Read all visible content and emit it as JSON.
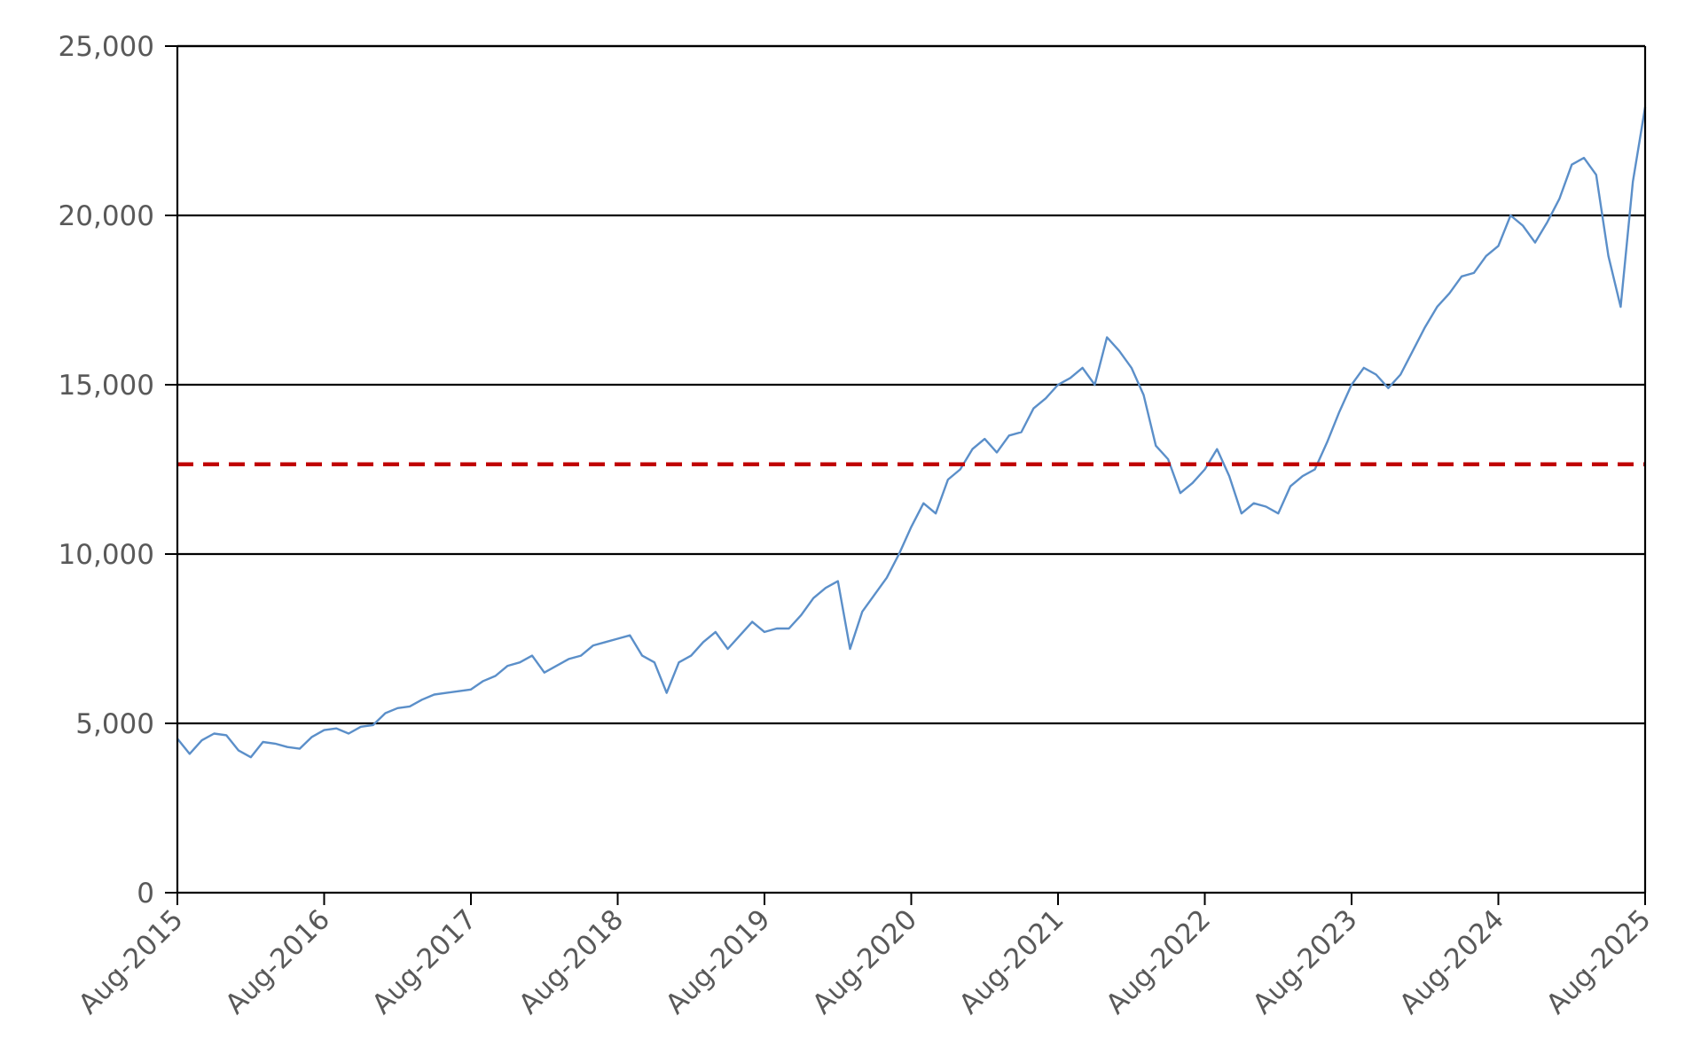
{
  "chart_data": {
    "type": "line",
    "title": "",
    "xlabel": "",
    "ylabel": "",
    "x_tick_labels": [
      "Aug-2015",
      "Aug-2016",
      "Aug-2017",
      "Aug-2018",
      "Aug-2019",
      "Aug-2020",
      "Aug-2021",
      "Aug-2022",
      "Aug-2023",
      "Aug-2024",
      "Aug-2025"
    ],
    "y_tick_labels": [
      "0",
      "5,000",
      "10,000",
      "15,000",
      "20,000",
      "25,000"
    ],
    "y_ticks": [
      0,
      5000,
      10000,
      15000,
      20000,
      25000
    ],
    "xlim": [
      "2015-08",
      "2025-08"
    ],
    "ylim": [
      0,
      25000
    ],
    "grid": "horizontal",
    "legend": "none",
    "series": [
      {
        "color": "#5b8fc9",
        "x": [
          "2015-08",
          "2015-09",
          "2015-10",
          "2015-11",
          "2015-12",
          "2016-01",
          "2016-02",
          "2016-03",
          "2016-04",
          "2016-05",
          "2016-06",
          "2016-07",
          "2016-08",
          "2016-09",
          "2016-10",
          "2016-11",
          "2016-12",
          "2017-01",
          "2017-02",
          "2017-03",
          "2017-04",
          "2017-05",
          "2017-06",
          "2017-07",
          "2017-08",
          "2017-09",
          "2017-10",
          "2017-11",
          "2017-12",
          "2018-01",
          "2018-02",
          "2018-03",
          "2018-04",
          "2018-05",
          "2018-06",
          "2018-07",
          "2018-08",
          "2018-09",
          "2018-10",
          "2018-11",
          "2018-12",
          "2019-01",
          "2019-02",
          "2019-03",
          "2019-04",
          "2019-05",
          "2019-06",
          "2019-07",
          "2019-08",
          "2019-09",
          "2019-10",
          "2019-11",
          "2019-12",
          "2020-01",
          "2020-02",
          "2020-03",
          "2020-04",
          "2020-05",
          "2020-06",
          "2020-07",
          "2020-08",
          "2020-09",
          "2020-10",
          "2020-11",
          "2020-12",
          "2021-01",
          "2021-02",
          "2021-03",
          "2021-04",
          "2021-05",
          "2021-06",
          "2021-07",
          "2021-08",
          "2021-09",
          "2021-10",
          "2021-11",
          "2021-12",
          "2022-01",
          "2022-02",
          "2022-03",
          "2022-04",
          "2022-05",
          "2022-06",
          "2022-07",
          "2022-08",
          "2022-09",
          "2022-10",
          "2022-11",
          "2022-12",
          "2023-01",
          "2023-02",
          "2023-03",
          "2023-04",
          "2023-05",
          "2023-06",
          "2023-07",
          "2023-08",
          "2023-09",
          "2023-10",
          "2023-11",
          "2023-12",
          "2024-01",
          "2024-02",
          "2024-03",
          "2024-04",
          "2024-05",
          "2024-06",
          "2024-07",
          "2024-08",
          "2024-09",
          "2024-10",
          "2024-11",
          "2024-12",
          "2025-01",
          "2025-02",
          "2025-03",
          "2025-04",
          "2025-05",
          "2025-06",
          "2025-07",
          "2025-08"
        ],
        "y": [
          4550,
          4100,
          4500,
          4700,
          4650,
          4200,
          4000,
          4450,
          4400,
          4300,
          4250,
          4600,
          4800,
          4850,
          4700,
          4900,
          4950,
          5300,
          5450,
          5500,
          5700,
          5850,
          5900,
          5950,
          6000,
          6250,
          6400,
          6700,
          6800,
          7000,
          6500,
          6700,
          6900,
          7000,
          7300,
          7400,
          7500,
          7600,
          7000,
          6800,
          5900,
          6800,
          7000,
          7400,
          7700,
          7200,
          7600,
          8000,
          7700,
          7800,
          7800,
          8200,
          8700,
          9000,
          9200,
          7200,
          8300,
          8800,
          9300,
          10000,
          10800,
          11500,
          11200,
          12200,
          12500,
          13100,
          13400,
          13000,
          13500,
          13600,
          14300,
          14600,
          15000,
          15200,
          15500,
          15000,
          16400,
          16000,
          15500,
          14700,
          13200,
          12800,
          11800,
          12100,
          12500,
          13100,
          12300,
          11200,
          11500,
          11400,
          11200,
          12000,
          12300,
          12500,
          13300,
          14200,
          15000,
          15500,
          15300,
          14900,
          15300,
          16000,
          16700,
          17300,
          17700,
          18200,
          18300,
          18800,
          19100,
          20000,
          19700,
          19200,
          19800,
          20500,
          21500,
          21700,
          21200,
          18800,
          17300,
          21000,
          23200
        ]
      }
    ],
    "reference_lines": [
      {
        "orientation": "horizontal",
        "y": 12650,
        "style": "dashed",
        "color": "#c00000"
      }
    ]
  }
}
